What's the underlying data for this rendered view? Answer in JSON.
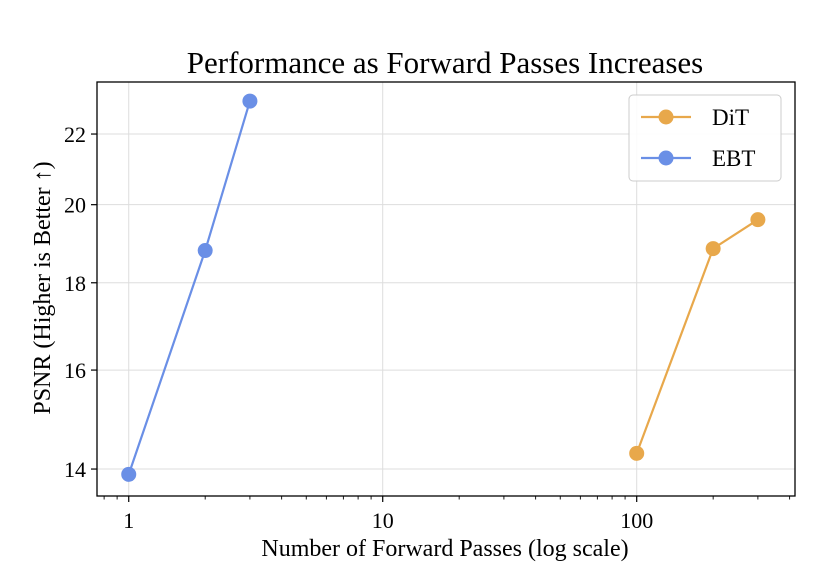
{
  "chart_data": {
    "type": "line",
    "title": "Performance as Forward Passes Increases",
    "xlabel": "Number of Forward Passes (log scale)",
    "ylabel": "PSNR (Higher is Better ↑)",
    "xscale": "log",
    "yscale": "log",
    "xlim": [
      0.75,
      420
    ],
    "ylim": [
      13.5,
      23.6
    ],
    "x_ticks": [
      1,
      10,
      100
    ],
    "x_tick_labels": [
      "1",
      "10",
      "100"
    ],
    "y_ticks": [
      14,
      16,
      18,
      20,
      22
    ],
    "y_tick_labels": [
      "14",
      "16",
      "18",
      "20",
      "22"
    ],
    "grid": true,
    "legend_position": "top-right",
    "series": [
      {
        "name": "DiT",
        "color": "#E8A84B",
        "x": [
          100,
          200,
          300
        ],
        "y": [
          14.3,
          18.85,
          19.6
        ]
      },
      {
        "name": "EBT",
        "color": "#6A8FE6",
        "x": [
          1,
          2,
          3
        ],
        "y": [
          13.9,
          18.8,
          23.0
        ]
      }
    ]
  }
}
